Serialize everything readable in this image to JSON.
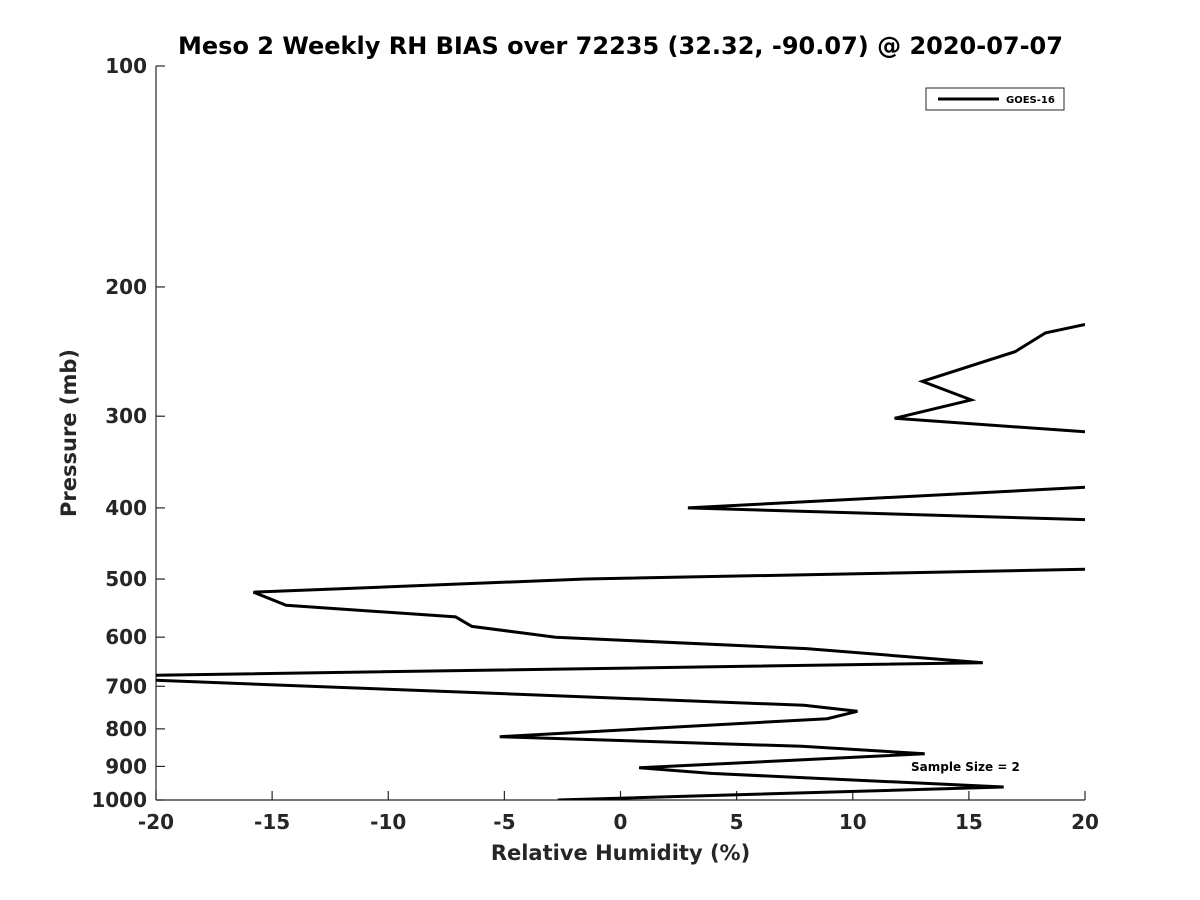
{
  "chart_data": {
    "type": "line",
    "title": "Meso 2 Weekly RH BIAS over 72235 (32.32, -90.07) @ 2020-07-07",
    "xlabel": "Relative Humidity (%)",
    "ylabel": "Pressure (mb)",
    "xlim": [
      -20,
      20
    ],
    "ylim": [
      100,
      1000
    ],
    "y_scale": "log",
    "y_reversed": true,
    "xticks": [
      -20,
      -15,
      -10,
      -5,
      0,
      5,
      10,
      15,
      20
    ],
    "yticks": [
      100,
      200,
      300,
      400,
      500,
      600,
      700,
      800,
      900,
      1000
    ],
    "grid": false,
    "legend_position": "top-right",
    "annotation": "Sample Size = 2",
    "series": [
      {
        "name": "GOES-16",
        "color": "#000000",
        "x": [
          20,
          18.3,
          17,
          13,
          15.1,
          11.8,
          20,
          null,
          20,
          2.9,
          20,
          null,
          20,
          -1.5,
          -15.8,
          -14.4,
          -7.1,
          -6.4,
          -2.8,
          8,
          15.6,
          -20,
          null,
          -20,
          7.9,
          10.2,
          8.9,
          -5.2,
          7.8,
          13.1,
          0.8,
          3.9,
          16.5,
          -2.7
        ],
        "y": [
          225,
          231,
          245,
          269,
          285,
          302,
          315,
          null,
          375,
          400,
          415,
          null,
          485,
          500,
          521,
          543,
          563,
          580,
          600,
          622,
          650,
          676,
          null,
          687,
          743,
          757,
          775,
          820,
          845,
          865,
          904,
          920,
          960,
          1000
        ]
      }
    ]
  }
}
